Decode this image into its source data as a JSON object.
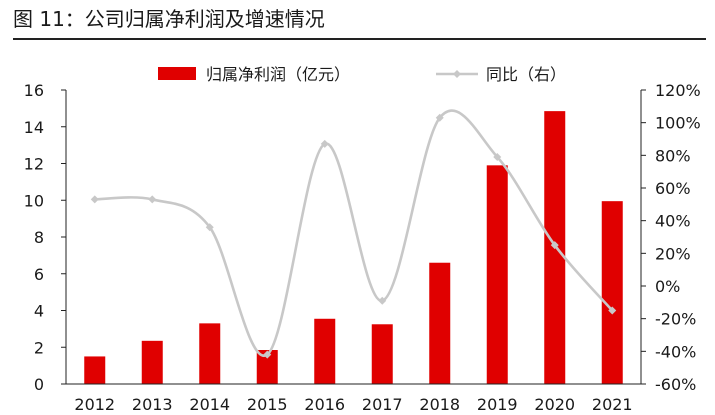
{
  "figure": {
    "title": "图 11：公司归属净利润及增速情况"
  },
  "chart_data": {
    "type": "bar",
    "categories": [
      "2012",
      "2013",
      "2014",
      "2015",
      "2016",
      "2017",
      "2018",
      "2019",
      "2020",
      "2021"
    ],
    "series": [
      {
        "name": "归属净利润（亿元）",
        "type": "bar",
        "axis": "left",
        "color": "#e00000",
        "values": [
          1.5,
          2.35,
          3.3,
          1.85,
          3.55,
          3.25,
          6.6,
          11.9,
          14.85,
          9.95
        ]
      },
      {
        "name": "同比（右）",
        "type": "line",
        "axis": "right",
        "color": "#c8c8c8",
        "smooth": true,
        "marker": "diamond",
        "values": [
          0.53,
          0.53,
          0.36,
          -0.42,
          0.87,
          -0.09,
          1.03,
          0.79,
          0.25,
          -0.15
        ]
      }
    ],
    "y_left": {
      "min": 0,
      "max": 16,
      "ticks": [
        "0",
        "2",
        "4",
        "6",
        "8",
        "10",
        "12",
        "14",
        "16"
      ]
    },
    "y_right": {
      "min": -0.6,
      "max": 1.2,
      "ticks": [
        "-60%",
        "-40%",
        "-20%",
        "0%",
        "20%",
        "40%",
        "60%",
        "80%",
        "100%",
        "120%"
      ]
    },
    "legend_position": "top-center",
    "grid": false
  }
}
